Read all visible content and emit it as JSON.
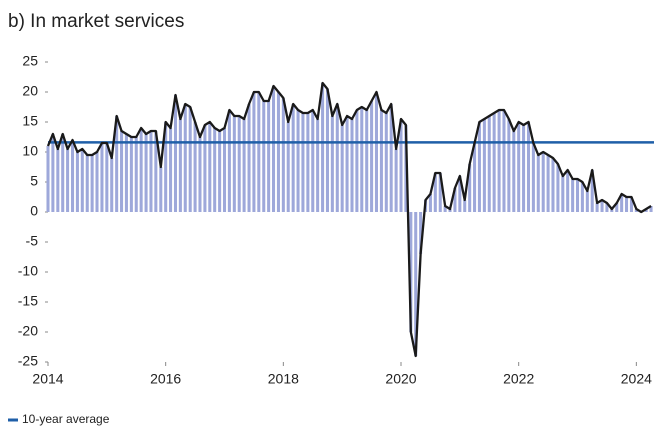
{
  "chart_data": {
    "type": "bar_line",
    "title": "b)  In market services",
    "x": [
      2014,
      2014.083,
      2014.167,
      2014.25,
      2014.333,
      2014.417,
      2014.5,
      2014.583,
      2014.667,
      2014.75,
      2014.833,
      2014.917,
      2015,
      2015.083,
      2015.167,
      2015.25,
      2015.333,
      2015.417,
      2015.5,
      2015.583,
      2015.667,
      2015.75,
      2015.833,
      2015.917,
      2016,
      2016.083,
      2016.167,
      2016.25,
      2016.333,
      2016.417,
      2016.5,
      2016.583,
      2016.667,
      2016.75,
      2016.833,
      2016.917,
      2017,
      2017.083,
      2017.167,
      2017.25,
      2017.333,
      2017.417,
      2017.5,
      2017.583,
      2017.667,
      2017.75,
      2017.833,
      2017.917,
      2018,
      2018.083,
      2018.167,
      2018.25,
      2018.333,
      2018.417,
      2018.5,
      2018.583,
      2018.667,
      2018.75,
      2018.833,
      2018.917,
      2019,
      2019.083,
      2019.167,
      2019.25,
      2019.333,
      2019.417,
      2019.5,
      2019.583,
      2019.667,
      2019.75,
      2019.833,
      2019.917,
      2020,
      2020.083,
      2020.167,
      2020.25,
      2020.333,
      2020.417,
      2020.5,
      2020.583,
      2020.667,
      2020.75,
      2020.833,
      2020.917,
      2021,
      2021.083,
      2021.167,
      2021.25,
      2021.333,
      2021.417,
      2021.5,
      2021.583,
      2021.667,
      2021.75,
      2021.833,
      2021.917,
      2022,
      2022.083,
      2022.167,
      2022.25,
      2022.333,
      2022.417,
      2022.5,
      2022.583,
      2022.667,
      2022.75,
      2022.833,
      2022.917,
      2023,
      2023.083,
      2023.167,
      2023.25,
      2023.333,
      2023.417,
      2023.5,
      2023.583,
      2023.667,
      2023.75,
      2023.833,
      2023.917,
      2024,
      2024.083,
      2024.167,
      2024.25
    ],
    "values": [
      11,
      13,
      10.5,
      13,
      10.5,
      12,
      10,
      10.5,
      9.5,
      9.5,
      10,
      11.5,
      11.5,
      9,
      16,
      13.5,
      13,
      12.5,
      12.5,
      14,
      13,
      13.5,
      13.5,
      7.5,
      15,
      14,
      19.5,
      15.5,
      18,
      17.5,
      15,
      12.5,
      14.5,
      15,
      14,
      13.5,
      14,
      17,
      16,
      16,
      15.5,
      18,
      20,
      20,
      18.5,
      18.5,
      21,
      20,
      19,
      15,
      18,
      17,
      16.5,
      16.5,
      17,
      15.5,
      21.5,
      20.5,
      16,
      18,
      14.5,
      16,
      15.5,
      17,
      17.5,
      17,
      18.5,
      20,
      17,
      16.5,
      18,
      10.5,
      15.5,
      14.5,
      -20,
      -24,
      -7,
      2,
      3,
      6.5,
      6.5,
      1,
      0.5,
      4,
      6,
      2,
      8,
      11.5,
      15,
      15.5,
      16,
      16.5,
      17,
      17,
      15.5,
      13.5,
      15,
      14.5,
      15,
      11.5,
      9.5,
      10,
      9.5,
      9,
      8,
      6,
      7,
      5.5,
      5.5,
      5,
      3.5,
      7,
      1.5,
      2,
      1.5,
      0.5,
      1.5,
      3,
      2.5,
      2.5,
      0.5,
      0,
      0.5,
      1
    ],
    "bar_color": "#9ea8da",
    "line_color": "#1a1a1a",
    "reference_lines": [
      {
        "name": "10-year average",
        "value": 11.6,
        "color": "#1f5fa8"
      }
    ],
    "xlim": [
      2014,
      2024.3
    ],
    "xticks": [
      2014,
      2016,
      2018,
      2020,
      2022,
      2024
    ],
    "ylim": [
      -25,
      25
    ],
    "yticks": [
      -25,
      -20,
      -15,
      -10,
      -5,
      0,
      5,
      10,
      15,
      20,
      25
    ]
  }
}
